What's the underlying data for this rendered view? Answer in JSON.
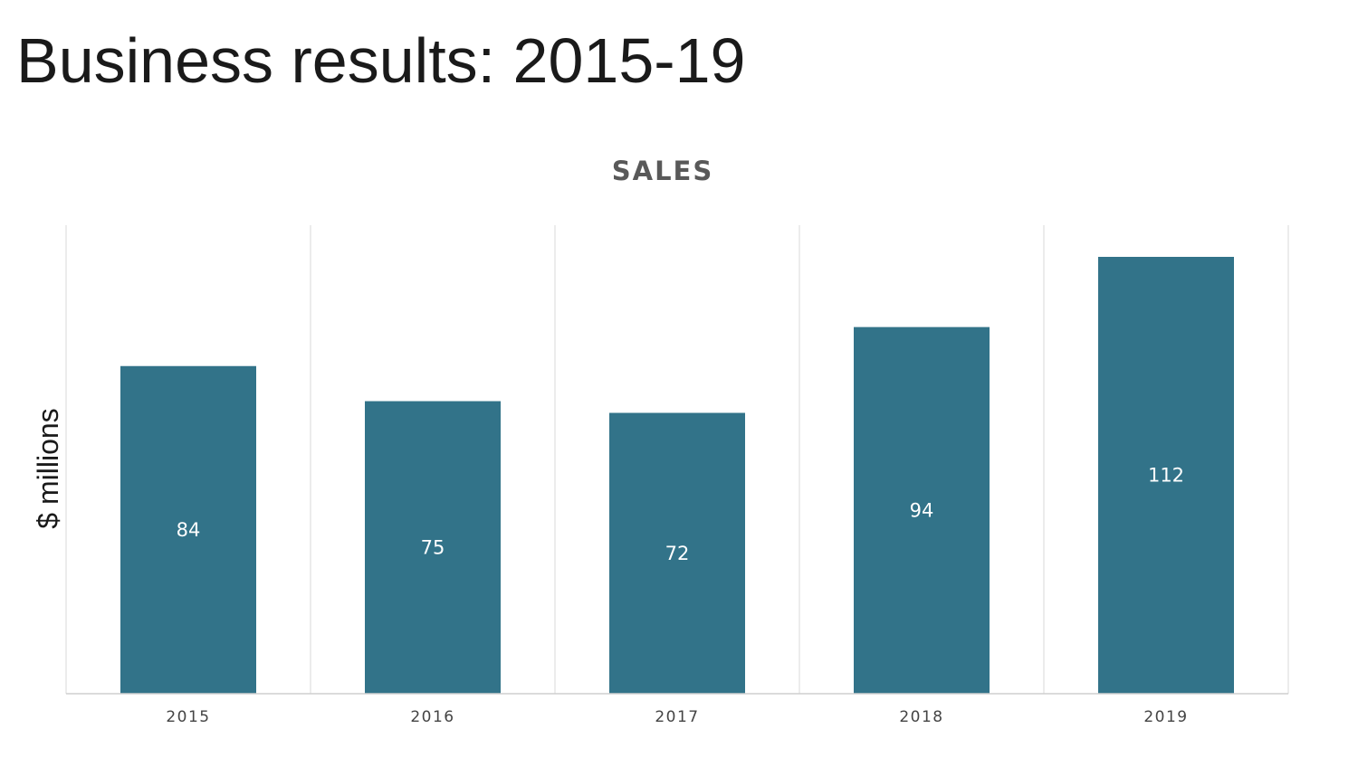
{
  "page": {
    "title": "Business results: 2015-19"
  },
  "chart_data": {
    "type": "bar",
    "title": "SALES",
    "xlabel": "",
    "ylabel": "$ millions",
    "categories": [
      "2015",
      "2016",
      "2017",
      "2018",
      "2019"
    ],
    "values": [
      84,
      75,
      72,
      94,
      112
    ],
    "ylim": [
      0,
      120
    ],
    "grid": "vertical category separators",
    "legend": "none",
    "data_labels": "inside bar center",
    "colors": {
      "bar": "#327389",
      "data_label": "#ffffff",
      "gridline": "#d9d9d9"
    }
  }
}
